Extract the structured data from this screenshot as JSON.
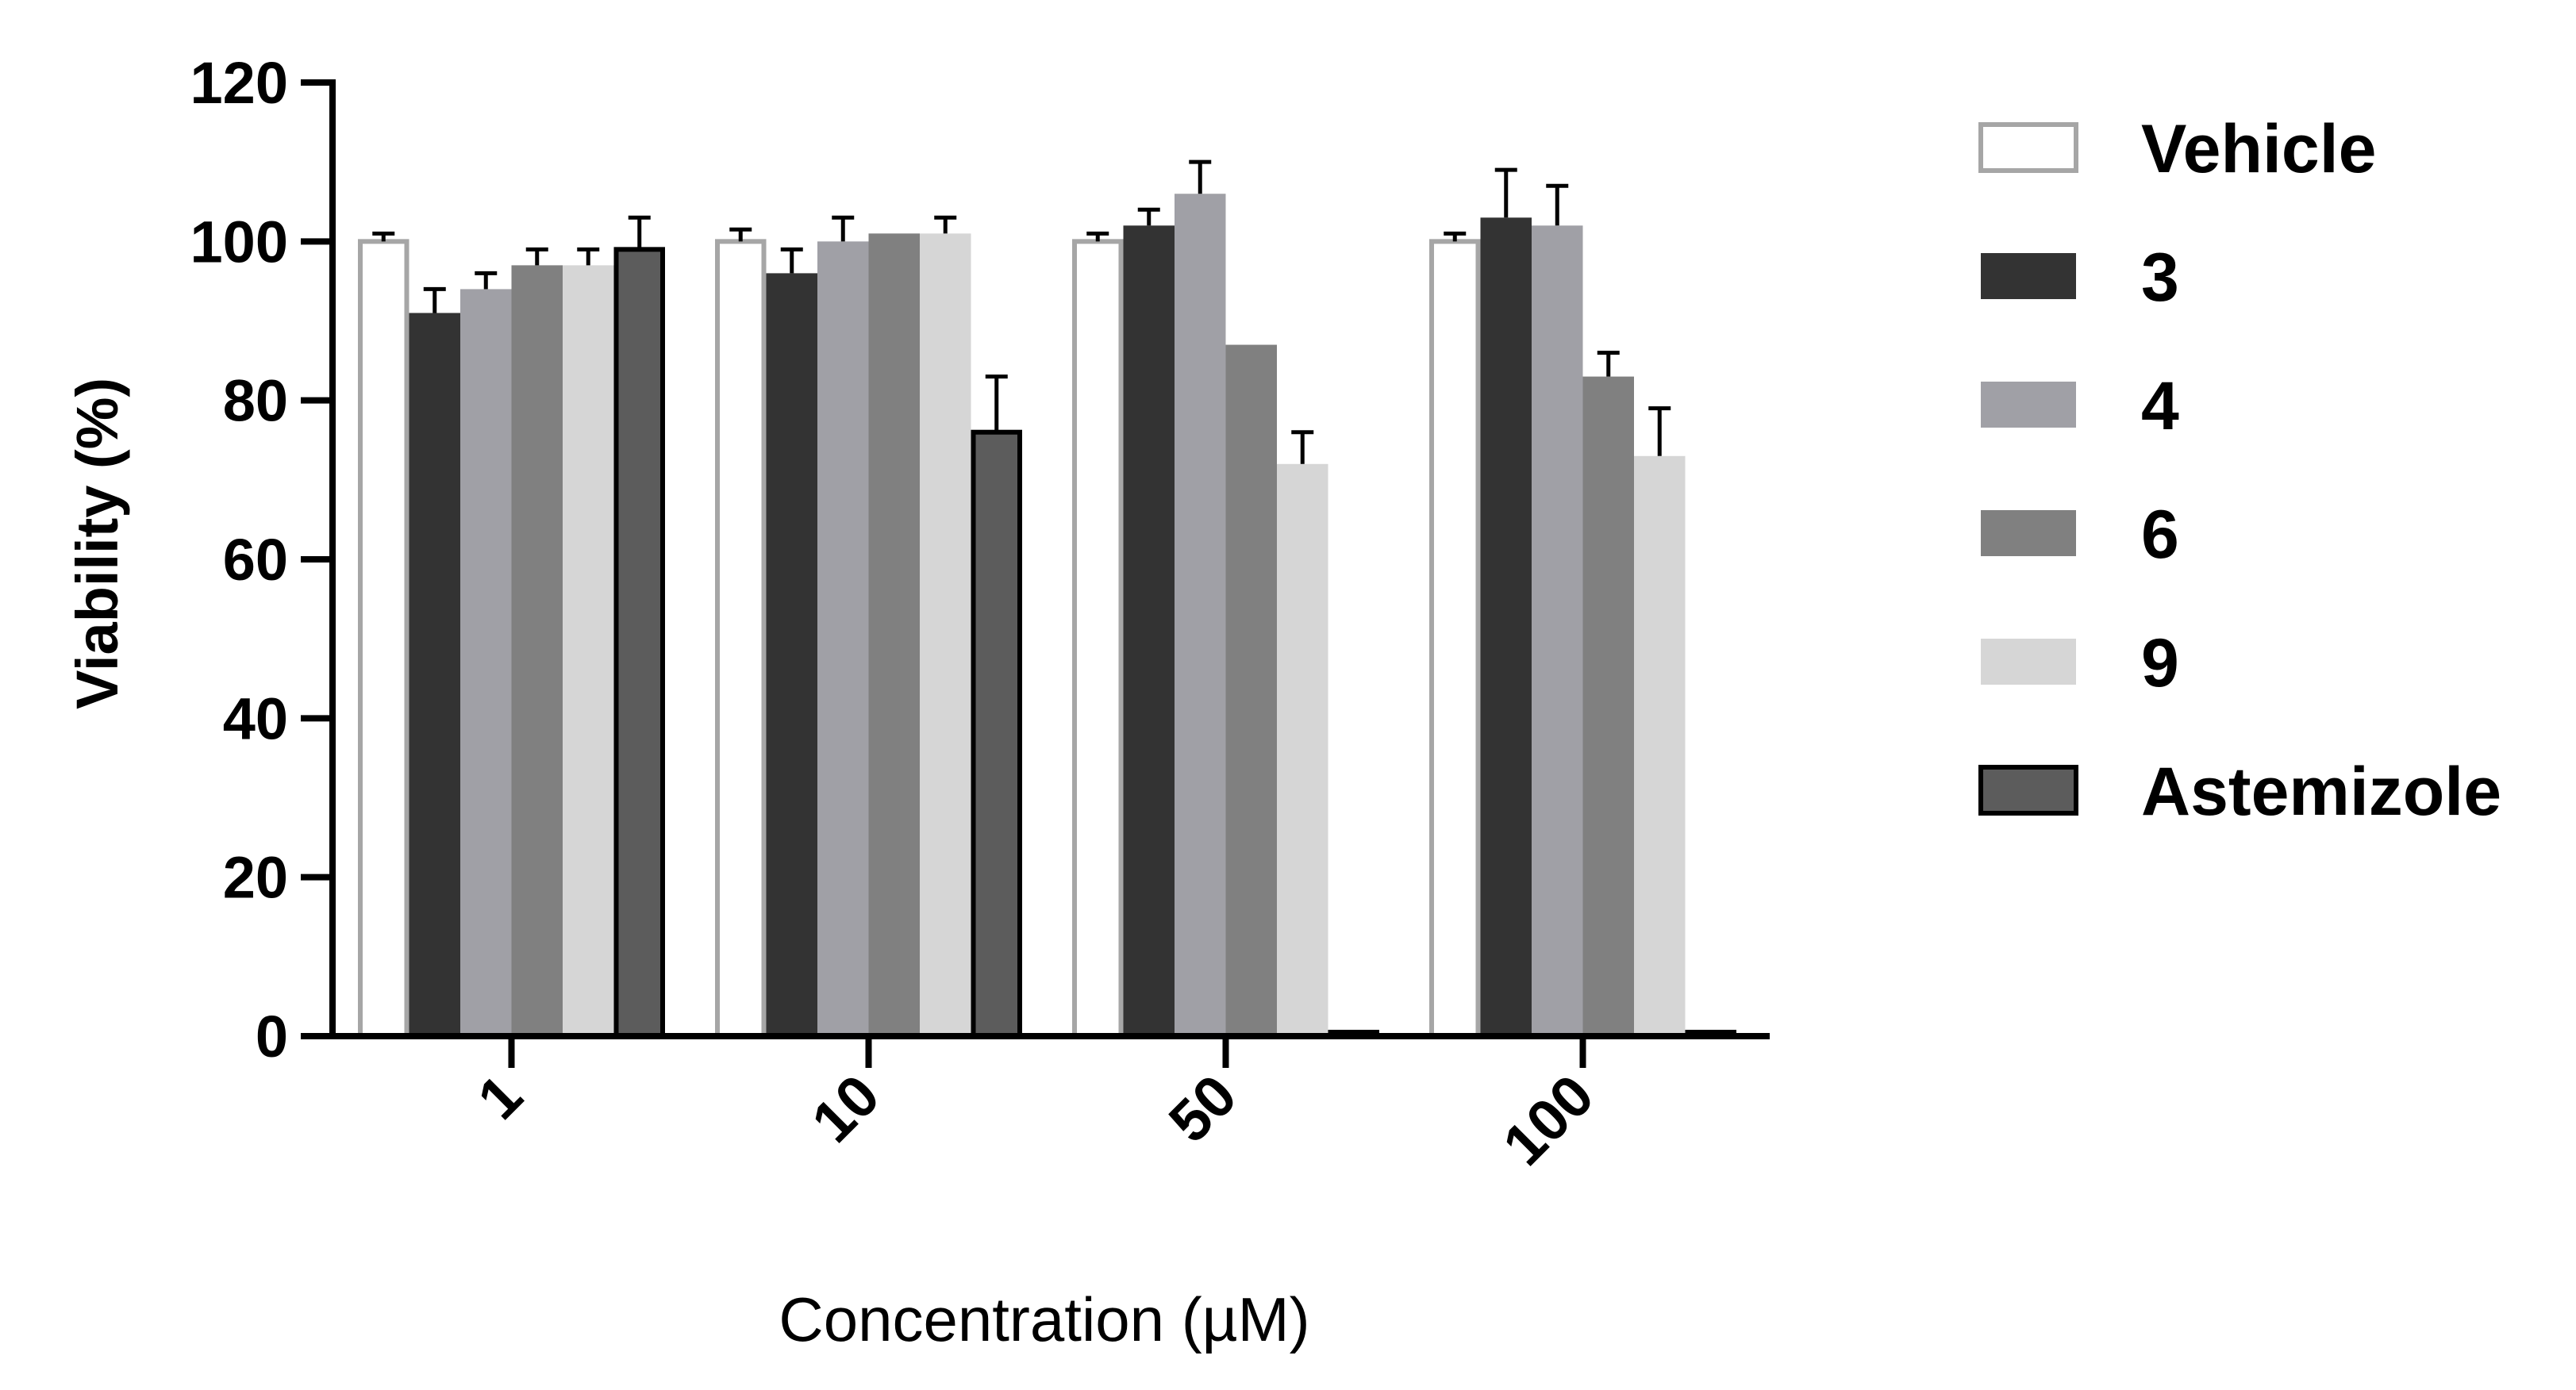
{
  "chart_data": {
    "type": "bar",
    "title": "",
    "xlabel": "Concentration (µM)",
    "ylabel": "Viability (%)",
    "ylim": [
      0,
      120
    ],
    "yticks": [
      "0",
      "20",
      "40",
      "60",
      "80",
      "100",
      "120"
    ],
    "categories": [
      "1",
      "10",
      "50",
      "100"
    ],
    "legend_position": "right",
    "series": [
      {
        "name": "Vehicle",
        "fill": "#ffffff",
        "stroke": "#a6a6a6",
        "values": [
          100,
          100,
          100,
          100
        ],
        "errors": [
          1,
          1.5,
          1,
          1
        ]
      },
      {
        "name": "3",
        "fill": "#333333",
        "stroke": "#333333",
        "values": [
          91,
          96,
          102,
          103
        ],
        "errors": [
          3,
          3,
          2,
          6
        ]
      },
      {
        "name": "4",
        "fill": "#a0a0a6",
        "stroke": "#a0a0a6",
        "values": [
          94,
          100,
          106,
          102
        ],
        "errors": [
          2,
          3,
          4,
          5
        ]
      },
      {
        "name": "6",
        "fill": "#808080",
        "stroke": "#808080",
        "values": [
          97,
          101,
          87,
          83
        ],
        "errors": [
          2,
          0,
          0,
          3
        ]
      },
      {
        "name": "9",
        "fill": "#d6d6d6",
        "stroke": "#d6d6d6",
        "values": [
          97,
          101,
          72,
          73
        ],
        "errors": [
          2,
          2,
          4,
          6
        ]
      },
      {
        "name": "Astemizole",
        "fill": "#5c5c5c",
        "stroke": "#000000",
        "values": [
          99,
          76,
          0.5,
          0.5
        ],
        "errors": [
          4,
          7,
          0,
          0
        ]
      }
    ]
  }
}
